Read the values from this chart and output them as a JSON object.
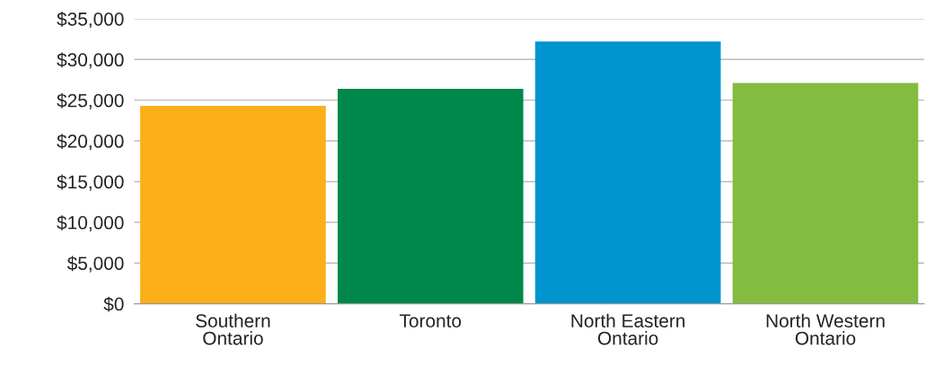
{
  "chart_data": {
    "type": "bar",
    "categories": [
      "Southern\nOntario",
      "Toronto",
      "North Eastern\nOntario",
      "North Western\nOntario"
    ],
    "values": [
      24300,
      26400,
      32200,
      27100
    ],
    "colors": [
      "#fcaf17",
      "#00874a",
      "#0095cf",
      "#84bc41"
    ],
    "ylim": [
      0,
      35000
    ],
    "yticks": [
      {
        "value": 0,
        "label": "$0"
      },
      {
        "value": 5000,
        "label": "$5,000"
      },
      {
        "value": 10000,
        "label": "$10,000"
      },
      {
        "value": 15000,
        "label": "$15,000"
      },
      {
        "value": 20000,
        "label": "$20,000"
      },
      {
        "value": 25000,
        "label": "$25,000"
      },
      {
        "value": 30000,
        "label": "$30,000"
      },
      {
        "value": 35000,
        "label": "$35,000"
      }
    ],
    "grid": "y"
  }
}
